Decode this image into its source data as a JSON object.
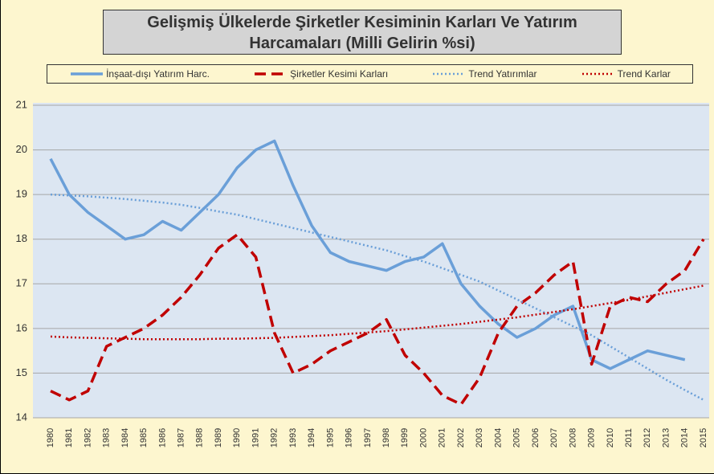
{
  "chart_data": {
    "type": "line",
    "title": "Gelişmiş Ülkelerde Şirketler Kesiminin Karları Ve Yatırım Harcamaları (Milli Gelirin %si)",
    "categories": [
      "1980",
      "1981",
      "1982",
      "1983",
      "1984",
      "1985",
      "1986",
      "1987",
      "1988",
      "1989",
      "1990",
      "1991",
      "1992",
      "1993",
      "1994",
      "1995",
      "1996",
      "1997",
      "1998",
      "1999",
      "2000",
      "2001",
      "2002",
      "2003",
      "2004",
      "2005",
      "2006",
      "2007",
      "2008",
      "2009",
      "2010",
      "2011",
      "2012",
      "2013",
      "2014",
      "2015"
    ],
    "series": [
      {
        "name": "İnşaat-dışı Yatırım Harc.",
        "color": "#6a9fd8",
        "style": "solid",
        "values": [
          19.8,
          19.0,
          18.6,
          18.3,
          18.0,
          18.1,
          18.4,
          18.2,
          18.6,
          19.0,
          19.6,
          20.0,
          20.2,
          19.2,
          18.3,
          17.7,
          17.5,
          17.4,
          17.3,
          17.5,
          17.6,
          17.9,
          17.0,
          16.5,
          16.1,
          15.8,
          16.0,
          16.3,
          16.5,
          15.3,
          15.1,
          15.3,
          15.5,
          15.4,
          15.3,
          null
        ]
      },
      {
        "name": "Şirketler Kesimi Karları",
        "color": "#c00000",
        "style": "dashed",
        "values": [
          14.6,
          14.4,
          14.6,
          15.6,
          15.8,
          16.0,
          16.3,
          16.7,
          17.2,
          17.8,
          18.1,
          17.6,
          15.9,
          15.0,
          15.2,
          15.5,
          15.7,
          15.9,
          16.2,
          15.4,
          15.0,
          14.5,
          14.3,
          14.9,
          15.9,
          16.5,
          16.8,
          17.2,
          17.5,
          15.2,
          16.5,
          16.7,
          16.6,
          17.0,
          17.3,
          18.0
        ]
      },
      {
        "name": "Trend Yatırımlar",
        "color": "#6a9fd8",
        "style": "dotted",
        "values": [
          19.0,
          18.98,
          18.96,
          18.93,
          18.9,
          18.86,
          18.82,
          18.77,
          18.7,
          18.62,
          18.55,
          18.45,
          18.35,
          18.25,
          18.15,
          18.05,
          17.95,
          17.85,
          17.75,
          17.62,
          17.5,
          17.35,
          17.2,
          17.05,
          16.85,
          16.65,
          16.45,
          16.25,
          16.05,
          15.85,
          15.6,
          15.35,
          15.1,
          14.85,
          14.62,
          14.4
        ]
      },
      {
        "name": "Trend Karlar",
        "color": "#c00000",
        "style": "dotted",
        "values": [
          15.82,
          15.8,
          15.79,
          15.78,
          15.77,
          15.76,
          15.76,
          15.76,
          15.76,
          15.77,
          15.77,
          15.78,
          15.79,
          15.81,
          15.83,
          15.85,
          15.88,
          15.91,
          15.94,
          15.98,
          16.02,
          16.06,
          16.1,
          16.15,
          16.2,
          16.25,
          16.31,
          16.37,
          16.43,
          16.5,
          16.57,
          16.64,
          16.72,
          16.8,
          16.88,
          16.96
        ]
      }
    ],
    "ylim": [
      14,
      21
    ],
    "yticks": [
      14,
      15,
      16,
      17,
      18,
      19,
      20,
      21
    ],
    "grid": true
  }
}
